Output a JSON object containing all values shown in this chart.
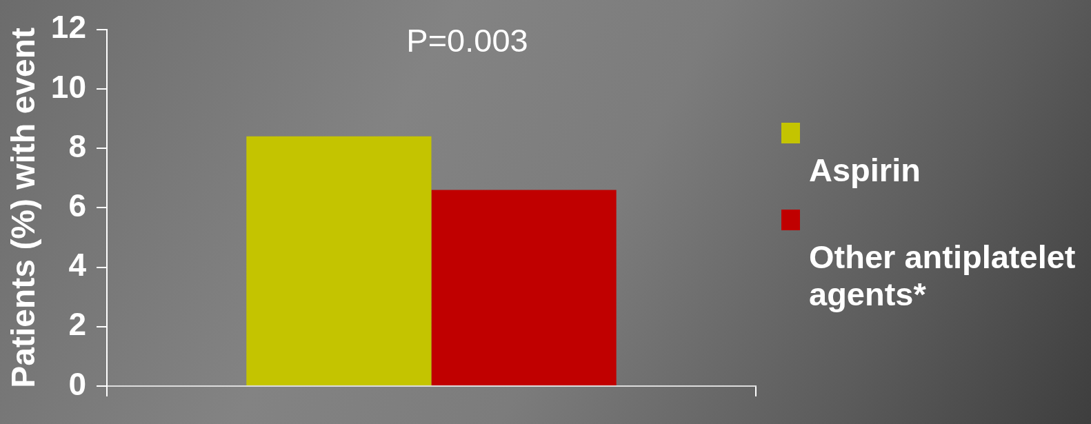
{
  "chart_data": {
    "type": "bar",
    "ylabel": "Patients (%) with event",
    "annotations": [
      "P=0.003"
    ],
    "categories": [
      null
    ],
    "series": [
      {
        "name": "Aspirin",
        "color": "#c4c400",
        "values": [
          8.4
        ]
      },
      {
        "name": "Other antiplatelet agents*",
        "color": "#c00000",
        "values": [
          6.6
        ]
      }
    ],
    "ylim": [
      0,
      12
    ],
    "yticks": [
      0,
      2,
      4,
      6,
      8,
      10,
      12
    ],
    "grid": false,
    "legend": "right"
  }
}
